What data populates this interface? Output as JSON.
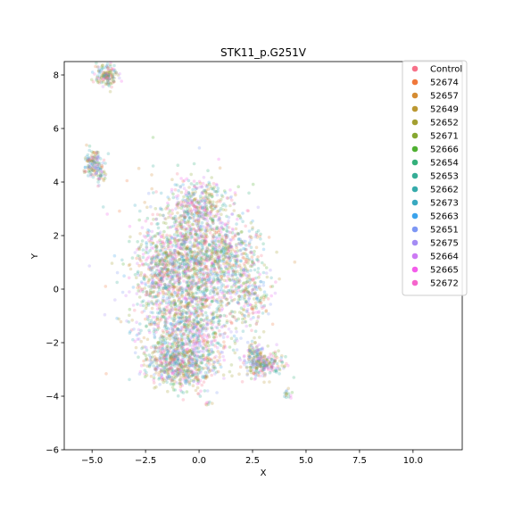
{
  "chart_data": {
    "type": "scatter",
    "title": "STK11_p.G251V",
    "xlabel": "X",
    "ylabel": "Y",
    "xlim": [
      -6.3,
      12.3
    ],
    "ylim": [
      -6,
      8.5
    ],
    "xticks": [
      -5.0,
      -2.5,
      0.0,
      2.5,
      5.0,
      7.5,
      10.0
    ],
    "xtick_labels": [
      "−5.0",
      "−2.5",
      "0.0",
      "2.5",
      "5.0",
      "7.5",
      "10.0"
    ],
    "yticks": [
      -6,
      -4,
      -2,
      0,
      2,
      4,
      6,
      8
    ],
    "ytick_labels": [
      "−6",
      "−4",
      "−2",
      "0",
      "2",
      "4",
      "6",
      "8"
    ],
    "grid": false,
    "legend_position": "top-right",
    "point_alpha": 0.25,
    "series": [
      {
        "name": "Control",
        "color": "#f77189"
      },
      {
        "name": "52674",
        "color": "#f0783b"
      },
      {
        "name": "52657",
        "color": "#d58c32"
      },
      {
        "name": "52649",
        "color": "#bb9832"
      },
      {
        "name": "52652",
        "color": "#a39f31"
      },
      {
        "name": "52671",
        "color": "#86a731"
      },
      {
        "name": "52666",
        "color": "#4fb031"
      },
      {
        "name": "52654",
        "color": "#33b07a"
      },
      {
        "name": "52653",
        "color": "#35ad96"
      },
      {
        "name": "52662",
        "color": "#36abab"
      },
      {
        "name": "52673",
        "color": "#38a9c0"
      },
      {
        "name": "52663",
        "color": "#3ba3ec"
      },
      {
        "name": "52651",
        "color": "#7d97f4"
      },
      {
        "name": "52675",
        "color": "#a48cf4"
      },
      {
        "name": "52664",
        "color": "#cc7af4"
      },
      {
        "name": "52665",
        "color": "#f45deb"
      },
      {
        "name": "52672",
        "color": "#f565cc"
      }
    ],
    "clusters": [
      {
        "cx": -0.3,
        "cy": 1.8,
        "sx": 1.2,
        "sy": 1.1,
        "n": 900
      },
      {
        "cx": -0.5,
        "cy": 0.2,
        "sx": 1.3,
        "sy": 1.0,
        "n": 900
      },
      {
        "cx": -0.6,
        "cy": -1.8,
        "sx": 1.1,
        "sy": 0.8,
        "n": 800
      },
      {
        "cx": -1.4,
        "cy": -2.8,
        "sx": 0.5,
        "sy": 0.4,
        "n": 250
      },
      {
        "cx": -0.3,
        "cy": -3.0,
        "sx": 0.5,
        "sy": 0.4,
        "n": 200
      },
      {
        "cx": 1.5,
        "cy": 1.0,
        "sx": 0.7,
        "sy": 0.7,
        "n": 300
      },
      {
        "cx": 2.5,
        "cy": -0.3,
        "sx": 0.5,
        "sy": 0.5,
        "n": 150
      },
      {
        "cx": -1.8,
        "cy": 0.9,
        "sx": 0.5,
        "sy": 0.6,
        "n": 200
      },
      {
        "cx": 0.0,
        "cy": 3.2,
        "sx": 0.5,
        "sy": 0.4,
        "n": 200
      },
      {
        "cx": 3.0,
        "cy": -2.8,
        "sx": 0.45,
        "sy": 0.22,
        "n": 250
      },
      {
        "cx": 2.6,
        "cy": -2.3,
        "sx": 0.25,
        "sy": 0.2,
        "n": 60
      },
      {
        "cx": -4.3,
        "cy": 8.0,
        "sx": 0.25,
        "sy": 0.2,
        "n": 160
      },
      {
        "cx": -4.9,
        "cy": 4.7,
        "sx": 0.2,
        "sy": 0.3,
        "n": 140
      },
      {
        "cx": -4.6,
        "cy": 4.2,
        "sx": 0.08,
        "sy": 0.15,
        "n": 30
      },
      {
        "cx": 4.1,
        "cy": -3.9,
        "sx": 0.1,
        "sy": 0.08,
        "n": 15
      },
      {
        "cx": 0.4,
        "cy": -4.3,
        "sx": 0.05,
        "sy": 0.05,
        "n": 6
      }
    ]
  }
}
